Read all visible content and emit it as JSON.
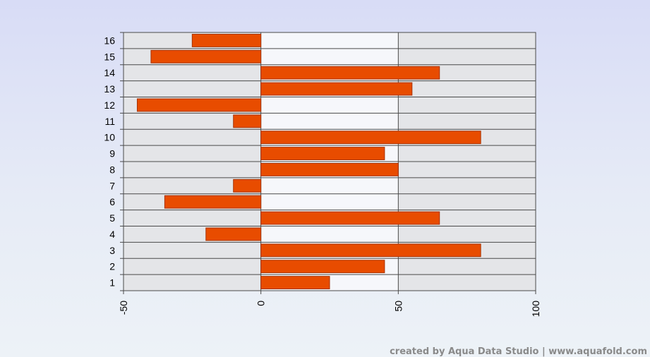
{
  "chart_data": {
    "type": "bar",
    "orientation": "horizontal",
    "categories": [
      "1",
      "2",
      "3",
      "4",
      "5",
      "6",
      "7",
      "8",
      "9",
      "10",
      "11",
      "12",
      "13",
      "14",
      "15",
      "16"
    ],
    "values": [
      25,
      45,
      80,
      -20,
      65,
      -35,
      -10,
      50,
      45,
      80,
      -10,
      -45,
      55,
      65,
      -40,
      -25
    ],
    "title": "",
    "xlabel": "",
    "ylabel": "",
    "xlim": [
      -50,
      100
    ],
    "xticks": [
      "-50",
      "0",
      "50",
      "100"
    ],
    "grid": true,
    "colors": {
      "bar_fill": "#e84c00",
      "bar_stroke": "#a83200",
      "band_gray": "#e4e5e8",
      "band_light": "#f6f7fb",
      "grid": "#4a4a4a"
    }
  },
  "footer": {
    "credit": "created by Aqua Data Studio | www.aquafold.com"
  }
}
